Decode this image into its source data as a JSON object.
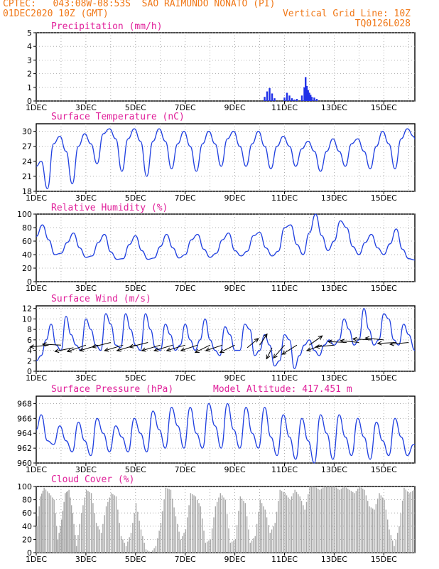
{
  "header": {
    "line1_left": "CPTEC:   043:08W-08:53S  SAO RAIMUNDO NONATO (PI)",
    "line2_left": "01DEC2020 10Z (GMT)",
    "line2_right": "Vertical Grid Line: 10Z",
    "line3_right": "TQ0126L028",
    "model_altitude": "Model Altitude: 417.451 m"
  },
  "colors": {
    "header": "#f07818",
    "title": "#e0209a",
    "line": "#2040e0",
    "precip_bar": "#2030e8",
    "cloud_fill": "#a8a8a8",
    "wind_arrow": "#000000"
  },
  "x_axis": {
    "tick_labels": [
      "1DEC",
      "3DEC",
      "5DEC",
      "7DEC",
      "9DEC",
      "11DEC",
      "13DEC",
      "15DEC"
    ],
    "tick_days": [
      0,
      2,
      4,
      6,
      8,
      10,
      12,
      14
    ],
    "day_range": [
      0,
      15.25
    ]
  },
  "chart_data": [
    {
      "type": "bar",
      "title": "Precipitation (mm/h)",
      "ylim": [
        0,
        5
      ],
      "yticks": [
        "0",
        "1",
        "2",
        "3",
        "4",
        "5"
      ],
      "x": [
        9.2,
        9.3,
        9.4,
        9.5,
        9.6,
        10.0,
        10.1,
        10.2,
        10.3,
        10.4,
        10.5,
        10.7,
        10.8,
        10.85,
        10.9,
        10.95,
        11.0,
        11.05,
        11.1,
        11.2,
        11.3
      ],
      "values": [
        0.3,
        0.7,
        0.95,
        0.55,
        0.2,
        0.25,
        0.6,
        0.4,
        0.2,
        0.1,
        0.15,
        0.4,
        1.0,
        1.75,
        1.1,
        0.8,
        0.6,
        0.45,
        0.3,
        0.25,
        0.15
      ]
    },
    {
      "type": "line",
      "title": "Surface Temperature (nC)",
      "ylim": [
        18,
        31.5
      ],
      "yticks": [
        "18",
        "21",
        "24",
        "27",
        "30"
      ],
      "x": [
        0,
        0.2,
        0.45,
        0.7,
        0.95,
        1.2,
        1.45,
        1.7,
        1.95,
        2.2,
        2.45,
        2.7,
        2.95,
        3.2,
        3.45,
        3.7,
        3.95,
        4.2,
        4.45,
        4.7,
        4.95,
        5.2,
        5.45,
        5.7,
        5.95,
        6.2,
        6.45,
        6.7,
        6.95,
        7.2,
        7.45,
        7.7,
        7.95,
        8.2,
        8.45,
        8.7,
        8.95,
        9.2,
        9.45,
        9.7,
        9.95,
        10.2,
        10.45,
        10.7,
        10.95,
        11.2,
        11.45,
        11.7,
        11.95,
        12.2,
        12.45,
        12.7,
        12.95,
        13.2,
        13.45,
        13.7,
        13.95,
        14.2,
        14.45,
        14.7,
        14.95,
        15.2,
        15.25
      ],
      "values": [
        23,
        24,
        18.5,
        27.5,
        29,
        26,
        19.5,
        27,
        29.5,
        27.5,
        23.5,
        29.5,
        30.5,
        28.5,
        22,
        28.5,
        30.5,
        28,
        21,
        28,
        30.5,
        28,
        22.5,
        27.5,
        30,
        27,
        22,
        27.5,
        30,
        27.5,
        23,
        28.5,
        30,
        27,
        23,
        27.5,
        30,
        27,
        22.5,
        27,
        29,
        27,
        23,
        26.5,
        28,
        26,
        22,
        26,
        28.5,
        26,
        23,
        27.5,
        28.5,
        26,
        22.5,
        27,
        30,
        27.5,
        22.5,
        28.5,
        30.5,
        29,
        28.5
      ]
    },
    {
      "type": "line",
      "title": "Relative Humidity (%)",
      "ylim": [
        0,
        100
      ],
      "yticks": [
        "0",
        "20",
        "40",
        "60",
        "80",
        "100"
      ],
      "x": [
        0,
        0.25,
        0.5,
        0.75,
        1.0,
        1.25,
        1.5,
        1.75,
        2.0,
        2.25,
        2.5,
        2.75,
        3.0,
        3.25,
        3.5,
        3.75,
        4.0,
        4.25,
        4.5,
        4.75,
        5.0,
        5.25,
        5.5,
        5.75,
        6.0,
        6.25,
        6.5,
        6.75,
        7.0,
        7.25,
        7.5,
        7.75,
        8.0,
        8.25,
        8.5,
        8.75,
        9.0,
        9.25,
        9.5,
        9.75,
        10.0,
        10.25,
        10.5,
        10.75,
        11.0,
        11.25,
        11.5,
        11.75,
        12.0,
        12.25,
        12.5,
        12.75,
        13.0,
        13.25,
        13.5,
        13.75,
        14.0,
        14.25,
        14.5,
        14.75,
        15.0,
        15.25
      ],
      "values": [
        67,
        84,
        62,
        40,
        42,
        58,
        72,
        50,
        36,
        38,
        58,
        70,
        44,
        33,
        34,
        55,
        68,
        46,
        33,
        35,
        52,
        70,
        50,
        35,
        40,
        62,
        70,
        48,
        36,
        42,
        62,
        72,
        46,
        38,
        45,
        68,
        73,
        50,
        38,
        45,
        80,
        84,
        55,
        40,
        72,
        100,
        68,
        46,
        60,
        90,
        80,
        52,
        40,
        58,
        70,
        50,
        40,
        56,
        78,
        48,
        34,
        32
      ]
    },
    {
      "type": "line",
      "title": "Surface Wind (m/s)",
      "ylim": [
        0,
        12.5
      ],
      "yticks": [
        "0",
        "2",
        "4",
        "6",
        "8",
        "10",
        "12"
      ],
      "x": [
        0,
        0.2,
        0.4,
        0.6,
        0.8,
        1.0,
        1.2,
        1.4,
        1.6,
        1.8,
        2.0,
        2.2,
        2.4,
        2.6,
        2.8,
        3.0,
        3.2,
        3.4,
        3.6,
        3.8,
        4.0,
        4.2,
        4.4,
        4.6,
        4.8,
        5.0,
        5.2,
        5.4,
        5.6,
        5.8,
        6.0,
        6.2,
        6.4,
        6.6,
        6.8,
        7.0,
        7.2,
        7.4,
        7.6,
        7.8,
        8.0,
        8.2,
        8.4,
        8.6,
        8.8,
        9.0,
        9.2,
        9.4,
        9.6,
        9.8,
        10.0,
        10.2,
        10.4,
        10.6,
        10.8,
        11.0,
        11.2,
        11.4,
        11.6,
        11.8,
        12.0,
        12.2,
        12.4,
        12.6,
        12.8,
        13.0,
        13.2,
        13.4,
        13.6,
        13.8,
        14.0,
        14.2,
        14.4,
        14.6,
        14.8,
        15.0,
        15.25
      ],
      "values": [
        2,
        3,
        6,
        9,
        5,
        4,
        10.5,
        7,
        5,
        4,
        10,
        8,
        5,
        4,
        11,
        9,
        5,
        4.5,
        11,
        8,
        5,
        4,
        11,
        8,
        4.5,
        4,
        9,
        7,
        4,
        5,
        9,
        6,
        4,
        6,
        10,
        6,
        4,
        3,
        8.5,
        7,
        4,
        4,
        9,
        8,
        3,
        4,
        7,
        5,
        1,
        2,
        7,
        6,
        0.5,
        3,
        5,
        6,
        4,
        3,
        5,
        6,
        5,
        6,
        10,
        8,
        5,
        6,
        12,
        8,
        5,
        6,
        11,
        10,
        6,
        5,
        9,
        7,
        4
      ]
    },
    {
      "type": "line",
      "title": "Surface Pressure (hPa)",
      "ylim": [
        960,
        969
      ],
      "yticks": [
        "960",
        "962",
        "964",
        "966",
        "968"
      ],
      "x": [
        0,
        0.2,
        0.45,
        0.7,
        0.95,
        1.2,
        1.45,
        1.7,
        1.95,
        2.2,
        2.45,
        2.7,
        2.95,
        3.2,
        3.45,
        3.7,
        3.95,
        4.2,
        4.45,
        4.7,
        4.95,
        5.2,
        5.45,
        5.7,
        5.95,
        6.2,
        6.45,
        6.7,
        6.95,
        7.2,
        7.45,
        7.7,
        7.95,
        8.2,
        8.45,
        8.7,
        8.95,
        9.2,
        9.45,
        9.7,
        9.95,
        10.2,
        10.45,
        10.7,
        10.95,
        11.2,
        11.45,
        11.7,
        11.95,
        12.2,
        12.45,
        12.7,
        12.95,
        13.2,
        13.45,
        13.7,
        13.95,
        14.2,
        14.45,
        14.7,
        14.95,
        15.2,
        15.25
      ],
      "values": [
        964.5,
        966.5,
        963,
        962.5,
        965,
        963,
        961.5,
        965.5,
        963,
        961,
        966,
        964,
        961.5,
        965,
        963.5,
        961.5,
        966,
        964,
        961.5,
        967,
        964.5,
        962,
        967.5,
        965,
        962,
        967.5,
        964,
        962,
        968,
        965,
        962,
        968,
        964.5,
        962,
        967.5,
        964,
        962,
        967.5,
        963.5,
        961,
        966.5,
        963.5,
        960.5,
        966,
        963,
        960,
        966.5,
        964,
        960.5,
        966.5,
        963.5,
        961,
        966,
        963.5,
        960.5,
        965.5,
        963,
        961,
        966,
        963.5,
        961,
        962.5,
        962.5
      ]
    },
    {
      "type": "area",
      "title": "Cloud Cover (%)",
      "ylim": [
        0,
        100
      ],
      "yticks": [
        "0",
        "20",
        "40",
        "60",
        "80",
        "100"
      ],
      "x": [
        0,
        0.15,
        0.3,
        0.5,
        0.7,
        0.85,
        1.0,
        1.15,
        1.3,
        1.45,
        1.6,
        1.8,
        2.0,
        2.2,
        2.4,
        2.6,
        2.8,
        3.0,
        3.2,
        3.4,
        3.6,
        3.8,
        4.0,
        4.2,
        4.4,
        4.6,
        4.8,
        5.0,
        5.2,
        5.4,
        5.6,
        5.8,
        6.0,
        6.2,
        6.4,
        6.6,
        6.8,
        7.0,
        7.2,
        7.4,
        7.6,
        7.8,
        8.0,
        8.2,
        8.4,
        8.6,
        8.8,
        9.0,
        9.2,
        9.4,
        9.6,
        9.8,
        10.0,
        10.2,
        10.4,
        10.6,
        10.8,
        11.0,
        11.2,
        11.4,
        11.6,
        11.8,
        12.0,
        12.2,
        12.4,
        12.6,
        12.8,
        13.0,
        13.2,
        13.4,
        13.6,
        13.8,
        14.0,
        14.2,
        14.4,
        14.6,
        14.8,
        15.0,
        15.2
      ],
      "values": [
        40,
        85,
        98,
        90,
        80,
        20,
        50,
        90,
        95,
        60,
        10,
        60,
        95,
        90,
        45,
        30,
        70,
        90,
        85,
        25,
        10,
        30,
        75,
        35,
        5,
        0,
        10,
        45,
        98,
        95,
        55,
        20,
        35,
        90,
        85,
        70,
        15,
        20,
        70,
        90,
        80,
        15,
        20,
        85,
        75,
        15,
        25,
        80,
        65,
        30,
        45,
        95,
        90,
        80,
        95,
        85,
        65,
        100,
        100,
        95,
        100,
        100,
        100,
        95,
        100,
        95,
        90,
        100,
        95,
        70,
        65,
        90,
        80,
        35,
        10,
        40,
        98,
        90,
        95
      ]
    }
  ],
  "wind_vectors": {
    "x": [
      0.5,
      1.0,
      1.5,
      2.0,
      2.5,
      3.0,
      3.5,
      4.0,
      4.5,
      5.0,
      5.5,
      6.0,
      6.5,
      7.0,
      7.5,
      8.0,
      8.5,
      9.0,
      9.5,
      10.0,
      10.5,
      11.0,
      11.5,
      12.0,
      12.5,
      13.0,
      13.5,
      14.0,
      14.5,
      15.0
    ],
    "u": [
      -1,
      -1,
      -1,
      -1,
      -1,
      -1,
      -1,
      -1,
      -1,
      -1,
      -1,
      -1,
      -0.9,
      -0.8,
      -0.9,
      -0.8,
      0.6,
      0.4,
      -0.3,
      -0.6,
      -0.8,
      0.7,
      -0.8,
      -1,
      -1,
      -1,
      -1,
      -1,
      -1,
      -1
    ],
    "v": [
      -0.1,
      0.05,
      -0.2,
      -0.35,
      -0.3,
      -0.25,
      -0.3,
      -0.3,
      -0.25,
      -0.3,
      -0.3,
      -0.3,
      -0.3,
      -0.4,
      -0.3,
      -0.4,
      0.5,
      0.6,
      -0.6,
      -0.7,
      -0.5,
      0.5,
      -0.3,
      -0.1,
      0.05,
      0.1,
      0.05,
      0.1,
      -0.05,
      -0.1
    ],
    "speed": [
      5,
      5,
      4.5,
      5,
      5,
      5.5,
      5,
      5,
      5.5,
      5,
      5,
      5,
      5,
      5,
      5,
      5,
      4.5,
      5,
      4.5,
      5,
      5,
      5,
      5,
      5,
      5.5,
      5.5,
      6,
      6,
      5.5,
      5.5
    ]
  }
}
